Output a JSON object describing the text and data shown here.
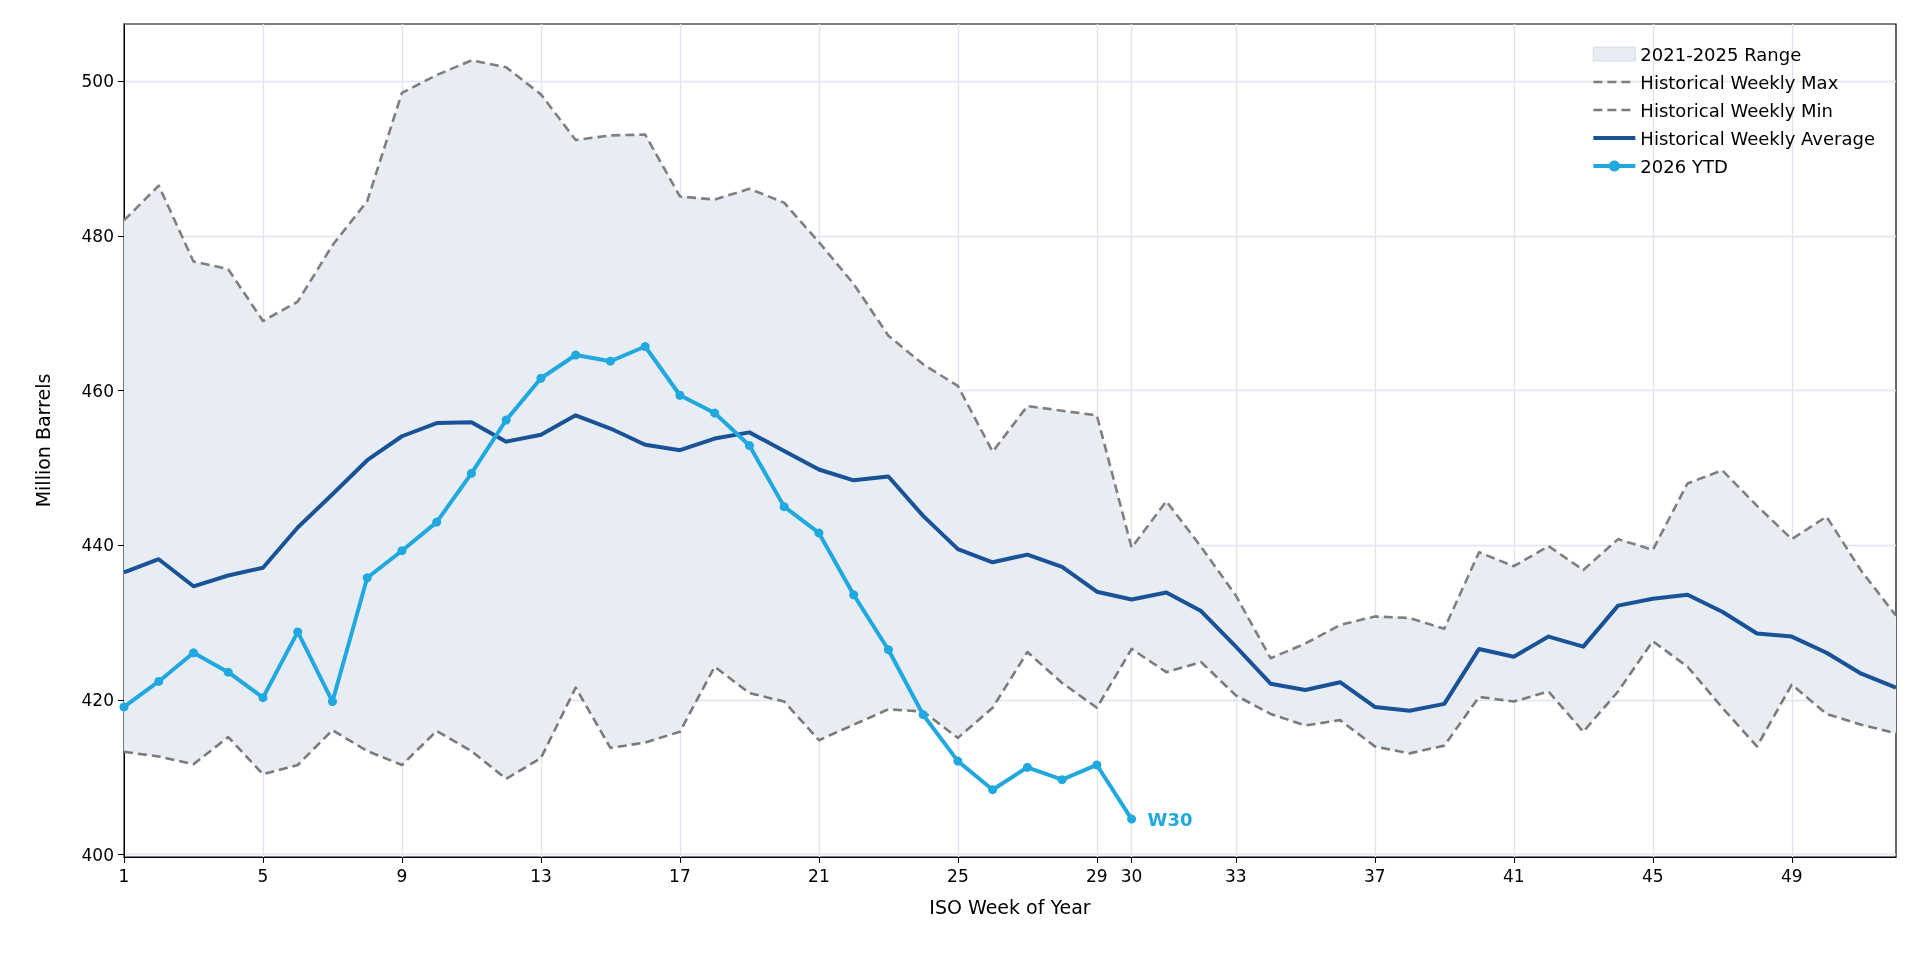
{
  "chart_data": {
    "type": "line",
    "xlabel": "ISO Week of Year",
    "ylabel": "Million Barrels",
    "x": [
      1,
      2,
      3,
      4,
      5,
      6,
      7,
      8,
      9,
      10,
      11,
      12,
      13,
      14,
      15,
      16,
      17,
      18,
      19,
      20,
      21,
      22,
      23,
      24,
      25,
      26,
      27,
      28,
      29,
      30,
      31,
      32,
      33,
      34,
      35,
      36,
      37,
      38,
      39,
      40,
      41,
      42,
      43,
      44,
      45,
      46,
      47,
      48,
      49,
      50,
      51,
      52
    ],
    "xlim": [
      1,
      52
    ],
    "xticks": [
      1,
      5,
      9,
      13,
      17,
      21,
      25,
      29,
      30,
      33,
      37,
      41,
      45,
      49
    ],
    "ylim": [
      399.7,
      507.4
    ],
    "yticks": [
      400,
      420,
      440,
      460,
      480,
      500
    ],
    "grid": true,
    "legend": "top right",
    "series": [
      {
        "name": "Historical Weekly Max",
        "type": "line",
        "color": "#7f7f7f",
        "line_style": "dashed",
        "marker": "none",
        "values": [
          482,
          486.5,
          476.7,
          475.7,
          469,
          471.5,
          478.8,
          484.5,
          498.5,
          500.8,
          502.7,
          501.8,
          498.3,
          492.4,
          493,
          493.1,
          485.1,
          484.7,
          486.1,
          484.3,
          479.2,
          473.8,
          467.1,
          463.4,
          460.6,
          452.1,
          458,
          457.4,
          456.8,
          439.7,
          445.7,
          439.8,
          433.5,
          425.4,
          427.3,
          429.7,
          430.8,
          430.6,
          429.2,
          439.1,
          437.3,
          439.9,
          436.8,
          440.8,
          439.4,
          448,
          449.7,
          445.1,
          440.8,
          443.7,
          436.7,
          430.9
        ]
      },
      {
        "name": "Historical Weekly Min",
        "type": "line",
        "color": "#7a7a7a",
        "line_style": "dashed",
        "marker": "none",
        "values": [
          413.3,
          412.7,
          411.7,
          415.2,
          410.4,
          411.6,
          416.1,
          413.4,
          411.6,
          416,
          413.4,
          409.8,
          412.5,
          421.6,
          413.8,
          414.5,
          415.9,
          424.3,
          420.9,
          419.8,
          414.8,
          416.8,
          418.8,
          418.5,
          415.1,
          419,
          426.2,
          422.2,
          419,
          426.6,
          423.6,
          424.9,
          420.6,
          418.2,
          416.7,
          417.4,
          414,
          413.1,
          414.1,
          420.4,
          419.8,
          421.1,
          415.9,
          421.1,
          427.6,
          424.3,
          419,
          414,
          422,
          418.2,
          416.8,
          415.7
        ]
      },
      {
        "name": "Historical Weekly Average",
        "type": "line",
        "color": "#1a5298",
        "line_style": "solid",
        "marker": "none",
        "values": [
          436.5,
          438.2,
          434.7,
          436.1,
          437.1,
          442.3,
          446.6,
          451,
          454.1,
          455.8,
          455.9,
          453.4,
          454.3,
          456.8,
          455.1,
          453,
          452.3,
          453.8,
          454.6,
          452.2,
          449.8,
          448.4,
          448.9,
          443.8,
          439.5,
          437.8,
          438.8,
          437.2,
          434,
          433,
          433.9,
          431.5,
          426.9,
          422.1,
          421.3,
          422.3,
          419.1,
          418.6,
          419.5,
          426.6,
          425.6,
          428.2,
          426.9,
          432.2,
          433.1,
          433.6,
          431.4,
          428.6,
          428.2,
          426.1,
          423.4,
          421.6
        ]
      },
      {
        "name": "2026 YTD",
        "type": "line",
        "color": "#20a8df",
        "line_style": "solid",
        "marker": "circle",
        "x": [
          1,
          2,
          3,
          4,
          5,
          6,
          7,
          8,
          9,
          10,
          11,
          12,
          13,
          14,
          15,
          16,
          17,
          18,
          19,
          20,
          21,
          22,
          23,
          24,
          25,
          26,
          27,
          28,
          29,
          30
        ],
        "values": [
          419.1,
          422.4,
          426.1,
          423.6,
          420.3,
          428.8,
          419.8,
          435.8,
          439.3,
          443,
          449.3,
          456.2,
          461.6,
          464.6,
          463.8,
          465.7,
          459.4,
          457.1,
          452.9,
          445,
          441.6,
          433.6,
          426.5,
          418.1,
          412.1,
          408.4,
          411.3,
          409.7,
          411.6,
          404.6
        ]
      },
      {
        "name": "2021-2025 Range",
        "type": "area",
        "color": "#e8edf3",
        "values": [
          null,
          null,
          null,
          null,
          null,
          null,
          null,
          null,
          null,
          null,
          null,
          null,
          null,
          null,
          null,
          null,
          null,
          null,
          null,
          null,
          null,
          null,
          null,
          null,
          null,
          null,
          null,
          null,
          null,
          null,
          null,
          null,
          null,
          null,
          null,
          null,
          null,
          null,
          null,
          null,
          null,
          null,
          null,
          null,
          null,
          null,
          null,
          null,
          null,
          null,
          null,
          null
        ],
        "upper": [
          482,
          486.5,
          476.7,
          475.7,
          469,
          471.5,
          478.8,
          484.5,
          498.5,
          500.8,
          502.7,
          501.8,
          498.3,
          492.4,
          493,
          493.1,
          485.1,
          484.7,
          486.1,
          484.3,
          479.2,
          473.8,
          467.1,
          463.4,
          460.6,
          452.1,
          458,
          457.4,
          456.8,
          439.7,
          445.7,
          439.8,
          433.5,
          425.4,
          427.3,
          429.7,
          430.8,
          430.6,
          429.2,
          439.1,
          437.3,
          439.9,
          436.8,
          440.8,
          439.4,
          448,
          449.7,
          445.1,
          440.8,
          443.7,
          436.7,
          430.9
        ],
        "lower": [
          413.3,
          412.7,
          411.7,
          415.2,
          410.4,
          411.6,
          416.1,
          413.4,
          411.6,
          416,
          413.4,
          409.8,
          412.5,
          421.6,
          413.8,
          414.5,
          415.9,
          424.3,
          420.9,
          419.8,
          414.8,
          416.8,
          418.8,
          418.5,
          415.1,
          419,
          426.2,
          422.2,
          419,
          426.6,
          423.6,
          424.9,
          420.6,
          418.2,
          416.7,
          417.4,
          414,
          413.1,
          414.1,
          420.4,
          419.8,
          421.1,
          415.9,
          421.1,
          427.6,
          424.3,
          419,
          414,
          422,
          418.2,
          416.8,
          415.7
        ]
      }
    ],
    "annotations": [
      {
        "text": "W30",
        "x": 30,
        "y": 404.6
      }
    ]
  }
}
